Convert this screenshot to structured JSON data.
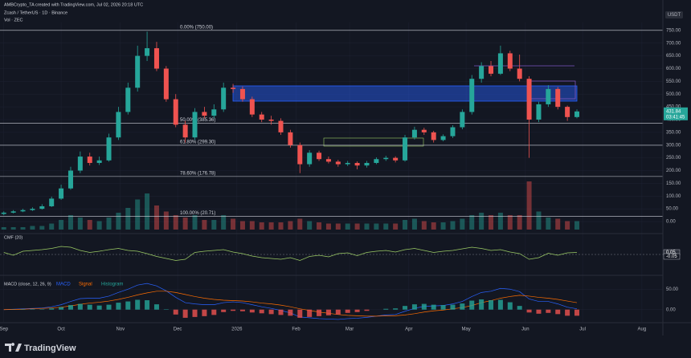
{
  "header": {
    "credit": "AMBCrypto_TA created with TradingView.com, Jul 02, 2026 20:18 UTC",
    "symbol": "Zcash / TetherUS · 1D · Binance",
    "volume_legend": "Vol · ZEC",
    "currency": "USDT",
    "brand": "TradingView"
  },
  "chart_data": [
    {
      "type": "candlestick",
      "name": "price",
      "x": [
        0,
        5,
        10,
        15,
        20,
        25,
        30,
        35,
        40,
        45,
        50,
        55,
        60,
        65,
        70,
        75,
        80,
        85,
        90,
        95,
        100,
        105,
        110,
        115,
        120,
        125,
        130,
        135,
        140,
        145,
        150,
        155,
        160,
        165,
        170,
        175,
        180,
        185,
        190,
        195,
        200,
        205,
        210,
        215,
        220,
        225,
        230,
        235,
        240,
        245,
        250,
        255,
        260,
        265,
        270,
        275,
        280,
        285,
        290,
        295,
        300
      ],
      "open": [
        30,
        35,
        40,
        45,
        50,
        60,
        90,
        130,
        200,
        255,
        230,
        240,
        330,
        430,
        525,
        650,
        680,
        600,
        480,
        380,
        330,
        430,
        415,
        440,
        525,
        520,
        480,
        420,
        400,
        395,
        350,
        300,
        225,
        270,
        245,
        235,
        225,
        230,
        220,
        230,
        245,
        250,
        240,
        330,
        360,
        350,
        320,
        335,
        370,
        430,
        560,
        610,
        580,
        660,
        600,
        560,
        400,
        460,
        520,
        450,
        410
      ],
      "high": [
        40,
        45,
        50,
        56,
        68,
        98,
        145,
        215,
        275,
        270,
        255,
        345,
        450,
        545,
        690,
        745,
        705,
        610,
        500,
        395,
        445,
        450,
        460,
        545,
        540,
        530,
        490,
        430,
        415,
        405,
        360,
        310,
        280,
        278,
        255,
        242,
        238,
        236,
        238,
        252,
        258,
        256,
        340,
        372,
        368,
        356,
        342,
        378,
        440,
        575,
        625,
        630,
        690,
        670,
        655,
        570,
        470,
        535,
        528,
        455,
        440
      ],
      "low": [
        25,
        32,
        37,
        42,
        47,
        57,
        85,
        125,
        190,
        220,
        222,
        235,
        320,
        420,
        510,
        630,
        590,
        470,
        370,
        310,
        320,
        405,
        405,
        430,
        505,
        470,
        410,
        390,
        380,
        340,
        290,
        190,
        215,
        238,
        228,
        215,
        218,
        205,
        212,
        225,
        238,
        232,
        235,
        322,
        340,
        310,
        315,
        328,
        362,
        420,
        545,
        570,
        575,
        590,
        550,
        250,
        390,
        450,
        440,
        395,
        405
      ],
      "close": [
        35,
        40,
        45,
        50,
        60,
        90,
        130,
        200,
        255,
        230,
        240,
        330,
        430,
        525,
        650,
        680,
        600,
        480,
        380,
        330,
        430,
        415,
        440,
        525,
        520,
        480,
        420,
        400,
        395,
        350,
        300,
        225,
        270,
        245,
        235,
        225,
        230,
        220,
        230,
        245,
        250,
        240,
        330,
        360,
        350,
        320,
        335,
        370,
        430,
        560,
        610,
        580,
        660,
        600,
        560,
        400,
        460,
        520,
        450,
        410,
        432
      ],
      "volume": [
        2,
        2,
        2,
        3,
        3,
        5,
        8,
        12,
        10,
        8,
        7,
        10,
        14,
        18,
        25,
        30,
        20,
        15,
        12,
        10,
        12,
        8,
        8,
        12,
        9,
        7,
        7,
        6,
        6,
        6,
        7,
        9,
        7,
        6,
        5,
        5,
        5,
        5,
        5,
        5,
        5,
        5,
        8,
        9,
        7,
        6,
        6,
        7,
        9,
        12,
        14,
        12,
        14,
        12,
        12,
        40,
        15,
        10,
        9,
        7,
        7
      ],
      "up_color": "#26a69a",
      "down_color": "#ef5350",
      "last_price_label": "431.84",
      "countdown": "03:41:45",
      "xlim": [
        -2,
        345
      ],
      "xticks": [
        {
          "value": 0,
          "label": "Sep"
        },
        {
          "value": 30,
          "label": "Oct"
        },
        {
          "value": 61,
          "label": "Nov"
        },
        {
          "value": 91,
          "label": "Dec"
        },
        {
          "value": 122,
          "label": "2026"
        },
        {
          "value": 153,
          "label": "Feb"
        },
        {
          "value": 181,
          "label": "Mar"
        },
        {
          "value": 212,
          "label": "Apr"
        },
        {
          "value": 242,
          "label": "May"
        },
        {
          "value": 273,
          "label": "Jun"
        },
        {
          "value": 303,
          "label": "Jul"
        },
        {
          "value": 334,
          "label": "Aug"
        }
      ],
      "ylim": [
        -44,
        781
      ],
      "yticks": [
        {
          "value": 750,
          "label": "750.00"
        },
        {
          "value": 700,
          "label": "700.00"
        },
        {
          "value": 650,
          "label": "650.00"
        },
        {
          "value": 600,
          "label": "600.00"
        },
        {
          "value": 550,
          "label": "550.00"
        },
        {
          "value": 500,
          "label": "500.00"
        },
        {
          "value": 450,
          "label": "450.00"
        },
        {
          "value": 400,
          "label": "400.00"
        },
        {
          "value": 350,
          "label": "350.00"
        },
        {
          "value": 300,
          "label": "300.00"
        },
        {
          "value": 250,
          "label": "250.00"
        },
        {
          "value": 200,
          "label": "200.00"
        },
        {
          "value": 150,
          "label": "150.00"
        },
        {
          "value": 100,
          "label": "100.00"
        },
        {
          "value": 50,
          "label": "50.00"
        },
        {
          "value": 0,
          "label": "0.00"
        }
      ],
      "fib_levels": [
        {
          "value": 750,
          "label": "0.00% (750.00)"
        },
        {
          "value": 385.36,
          "label": "50.00% (385.36)"
        },
        {
          "value": 299.3,
          "label": "61.80% (299.30)"
        },
        {
          "value": 176.78,
          "label": "78.60% (176.78)"
        },
        {
          "value": 20.71,
          "label": "100.00% (20.71)"
        }
      ],
      "grid": true
    },
    {
      "type": "line",
      "name": "CMF (20)",
      "color": "#9ccc65",
      "values": [
        0.05,
        -0.02,
        0.08,
        0.1,
        0.12,
        0.15,
        0.2,
        0.18,
        0.1,
        0.05,
        0.08,
        0.12,
        0.15,
        0.1,
        0.08,
        0.02,
        -0.05,
        -0.1,
        -0.15,
        -0.12,
        0.05,
        0.08,
        0.1,
        0.12,
        0.06,
        0.02,
        -0.04,
        -0.08,
        -0.1,
        -0.12,
        -0.08,
        -0.15,
        -0.05,
        -0.02,
        -0.06,
        0.02,
        0.04,
        -0.03,
        0.05,
        0.08,
        0.1,
        0.06,
        0.12,
        0.15,
        0.1,
        0.05,
        0.08,
        0.1,
        0.14,
        0.18,
        0.15,
        0.1,
        0.12,
        0.06,
        0.02,
        -0.12,
        -0.08,
        0.03,
        -0.02,
        0.04,
        0.05
      ],
      "ylim": [
        -0.5,
        0.5
      ],
      "yticks": [
        0.05,
        -0.05
      ]
    },
    {
      "type": "macd",
      "name": "MACD (close, 12, 26, 9)",
      "series": [
        {
          "name": "MACD",
          "color": "#2962ff",
          "values": [
            0,
            1,
            2,
            3,
            4,
            7,
            12,
            20,
            27,
            28,
            28,
            33,
            42,
            50,
            60,
            64,
            58,
            46,
            30,
            17,
            14,
            12,
            12,
            17,
            19,
            17,
            12,
            7,
            3,
            -2,
            -8,
            -18,
            -20,
            -22,
            -23,
            -24,
            -22,
            -21,
            -19,
            -16,
            -13,
            -12,
            -4,
            3,
            8,
            9,
            10,
            14,
            20,
            32,
            42,
            45,
            52,
            50,
            44,
            26,
            20,
            20,
            14,
            6,
            2
          ]
        },
        {
          "name": "Signal",
          "color": "#ff6d00",
          "values": [
            0,
            0.5,
            1,
            2,
            3,
            4,
            6,
            9,
            13,
            16,
            18,
            21,
            25,
            30,
            36,
            41,
            45,
            45,
            42,
            37,
            32,
            28,
            25,
            23,
            22,
            21,
            19,
            16,
            14,
            11,
            7,
            2,
            -2,
            -6,
            -9,
            -12,
            -14,
            -15,
            -16,
            -16,
            -15,
            -15,
            -13,
            -10,
            -6,
            -3,
            -1,
            2,
            5,
            10,
            17,
            22,
            28,
            32,
            35,
            33,
            30,
            28,
            25,
            21,
            17
          ]
        },
        {
          "name": "Histogram",
          "color": "#26a69a",
          "negative_color": "#ef5350",
          "values": [
            0,
            0.5,
            1,
            1,
            1,
            3,
            6,
            11,
            14,
            12,
            10,
            12,
            17,
            20,
            24,
            23,
            13,
            1,
            -12,
            -20,
            -18,
            -16,
            -13,
            -6,
            -3,
            -4,
            -7,
            -9,
            -11,
            -13,
            -15,
            -20,
            -18,
            -16,
            -14,
            -12,
            -8,
            -6,
            -3,
            0,
            2,
            3,
            9,
            13,
            14,
            12,
            11,
            12,
            15,
            22,
            25,
            23,
            24,
            18,
            9,
            -7,
            -10,
            -8,
            -11,
            -15,
            -15
          ]
        }
      ],
      "ylim": [
        -30,
        80
      ],
      "yticks": [
        {
          "value": 50,
          "label": "50.00"
        },
        {
          "value": 0,
          "label": "0.00"
        }
      ]
    }
  ]
}
